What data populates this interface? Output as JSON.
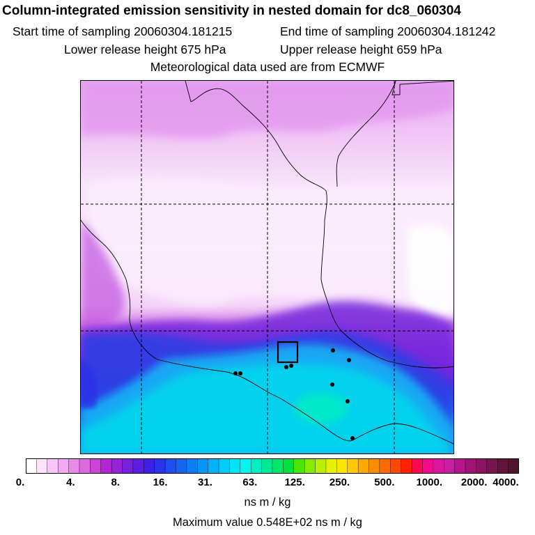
{
  "header": {
    "title": "Column-integrated emission sensitivity in nested domain for dc8_060304",
    "start_label": "Start time of sampling 20060304.181215",
    "end_label": "End time of sampling 20060304.181242",
    "lower_label": "Lower release height  675 hPa",
    "upper_label": "Upper release height  659 hPa",
    "met_label": "Meteorological data used are from ECMWF"
  },
  "chart_data": {
    "type": "heatmap",
    "title": "Column-integrated emission sensitivity in nested domain for dc8_060304",
    "variable": "column-integrated emission sensitivity",
    "units": "ns m / kg",
    "max_value_text": "Maximum value  0.548E+02 ns m / kg",
    "max_value": 54.8,
    "colorbar": {
      "tick_labels": [
        "0.",
        "4.",
        "8.",
        "16.",
        "31.",
        "63.",
        "125.",
        "250.",
        "500.",
        "1000.",
        "2000.",
        "4000."
      ],
      "tick_values": [
        0,
        4,
        8,
        16,
        31,
        63,
        125,
        250,
        500,
        1000,
        2000,
        4000
      ],
      "colors": [
        "#ffffff",
        "#fde3fd",
        "#f8c6f8",
        "#f3a9f3",
        "#e98ae9",
        "#dd6ae0",
        "#cc44d8",
        "#b326d6",
        "#9722d8",
        "#7a1fdc",
        "#5c1ee0",
        "#3f20e6",
        "#2a34ea",
        "#1e4ff0",
        "#1565f3",
        "#0b7ef6",
        "#0597f8",
        "#00b2fa",
        "#00cdfa",
        "#00e4f8",
        "#00f5ec",
        "#00f0c4",
        "#00ea96",
        "#00e66a",
        "#00e03c",
        "#4be600",
        "#86ec00",
        "#b9f000",
        "#e6f200",
        "#ffe600",
        "#ffc800",
        "#ffaa00",
        "#ff8c00",
        "#ff6a00",
        "#ff4800",
        "#ff2200",
        "#ff0a50",
        "#f00a8c",
        "#dc14a0",
        "#c81ea0",
        "#b4148c",
        "#a01478",
        "#8c1464",
        "#781450",
        "#64143c",
        "#501430"
      ]
    },
    "receptor_box": "release location",
    "map_features": [
      "coastlines",
      "country borders",
      "lat/lon gridlines"
    ]
  }
}
